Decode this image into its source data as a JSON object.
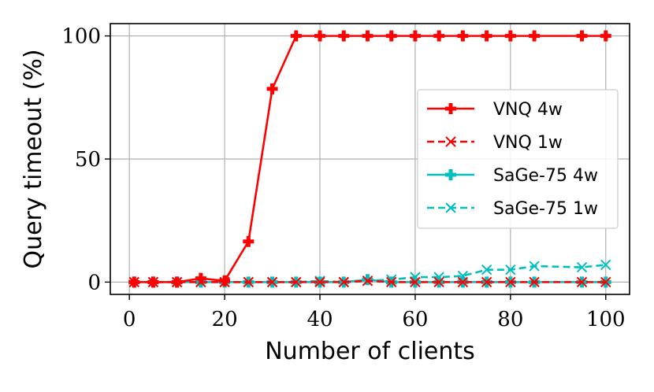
{
  "chart_data": {
    "type": "line",
    "xlabel": "Number of clients",
    "ylabel": "Query timeout (%)",
    "xlim": [
      -4,
      105
    ],
    "ylim": [
      -5,
      105
    ],
    "xticks": [
      "0",
      "20",
      "40",
      "60",
      "80",
      "100"
    ],
    "xtick_values": [
      0,
      20,
      40,
      60,
      80,
      100
    ],
    "yticks": [
      "0",
      "50",
      "100"
    ],
    "ytick_values": [
      0,
      50,
      100
    ],
    "grid": true,
    "legend_position": "center-right",
    "x": [
      1,
      5,
      10,
      15,
      20,
      25,
      30,
      35,
      40,
      45,
      50,
      55,
      60,
      65,
      70,
      75,
      80,
      85,
      95,
      100
    ],
    "series": [
      {
        "name": "VNQ 4w",
        "color": "#ff0000",
        "style": "solid",
        "marker": "plus",
        "values": [
          0,
          0,
          0,
          1.5,
          0.5,
          16.5,
          78.5,
          100,
          100,
          100,
          100,
          100,
          100,
          100,
          100,
          100,
          100,
          100,
          100,
          100
        ]
      },
      {
        "name": "VNQ 1w",
        "color": "#ff0000",
        "style": "dashed",
        "marker": "x",
        "values": [
          0,
          0,
          0,
          0,
          0,
          0,
          0,
          0,
          0,
          0,
          0.5,
          0,
          0,
          0,
          0,
          0,
          0,
          0,
          0,
          0
        ]
      },
      {
        "name": "SaGe-75 4w",
        "color": "#00bfbf",
        "style": "solid",
        "marker": "plus",
        "values": [
          0,
          0,
          0,
          0,
          0,
          0,
          0,
          0,
          0,
          0,
          1,
          0,
          0,
          0,
          0,
          0,
          0,
          0,
          0,
          0
        ]
      },
      {
        "name": "SaGe-75 1w",
        "color": "#00bfbf",
        "style": "dashed",
        "marker": "x",
        "values": [
          0,
          0,
          0,
          0,
          0,
          0,
          0,
          0,
          0.5,
          0,
          0.5,
          1,
          2,
          2,
          2.5,
          5,
          5,
          6.5,
          6,
          7
        ]
      }
    ]
  }
}
